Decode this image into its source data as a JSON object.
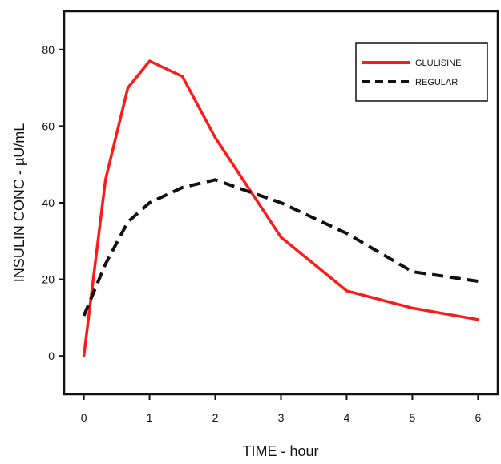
{
  "chart_data": {
    "type": "line",
    "xlabel": "TIME - hour",
    "ylabel": "INSULIN CONC - µU/mL",
    "xlim": [
      -0.3,
      6.3
    ],
    "ylim": [
      -10,
      90
    ],
    "xticks": [
      0,
      1,
      2,
      3,
      4,
      5,
      6
    ],
    "yticks": [
      0,
      20,
      40,
      60,
      80
    ],
    "grid": false,
    "legend_position": "top-right",
    "series": [
      {
        "name": "GLULISINE",
        "color": "#ff1a1a",
        "style": "solid",
        "x": [
          0,
          0.33,
          0.67,
          1,
          1.5,
          2,
          3,
          4,
          5,
          6
        ],
        "y": [
          0,
          46,
          70,
          77,
          73,
          57,
          31,
          17,
          12.5,
          9.5
        ]
      },
      {
        "name": "REGULAR",
        "color": "#111111",
        "style": "dashed",
        "x": [
          0,
          0.33,
          0.67,
          1,
          1.5,
          2,
          2.5,
          3,
          4,
          5,
          6
        ],
        "y": [
          10.5,
          24,
          35,
          40,
          44,
          46,
          43,
          40,
          32,
          22,
          19.5
        ]
      }
    ]
  }
}
